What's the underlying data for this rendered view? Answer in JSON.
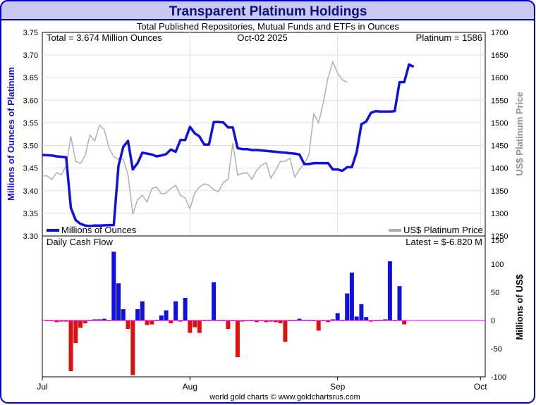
{
  "header": {
    "title": "Transparent Platinum Holdings",
    "subtitle": "Total Published Repositories, Mutual Funds and ETFs in Ounces"
  },
  "info": {
    "total": "Total = 3.674 Million Ounces",
    "date": "Oct-02  2025",
    "price": "Platinum = 1586"
  },
  "footer": {
    "credit": "world gold charts © www.goldchartsrus.com"
  },
  "colors": {
    "holdings": "#1010e0",
    "price": "#b0b0b0",
    "inflow": "#1010e0",
    "outflow": "#e01010",
    "zero_line": "#e000e0",
    "frame": "#0000c0",
    "title_bg": "#c8c8f0"
  },
  "chart_data": [
    {
      "type": "line",
      "title": "Transparent Platinum Holdings",
      "ylabel": "Millions of Ounces of Platinum",
      "y2label": "US$ Platinum Price",
      "ylim": [
        3.3,
        3.75
      ],
      "y2lim": [
        1250,
        1700
      ],
      "yticks": [
        "3.30",
        "3.35",
        "3.40",
        "3.45",
        "3.50",
        "3.55",
        "3.60",
        "3.65",
        "3.70",
        "3.75"
      ],
      "y2ticks": [
        "1250",
        "1300",
        "1350",
        "1400",
        "1450",
        "1500",
        "1550",
        "1600",
        "1650",
        "1700"
      ],
      "x_months": [
        {
          "label": "Jul",
          "day": 0
        },
        {
          "label": "Aug",
          "day": 31
        },
        {
          "label": "Sep",
          "day": 62
        },
        {
          "label": "Oct",
          "day": 92
        }
      ],
      "xlim": [
        0,
        93
      ],
      "legend": [
        "Millions of Ounces",
        "US$ Platinum Price"
      ],
      "series": [
        {
          "name": "Millions of Ounces",
          "axis": "left",
          "points": [
            [
              0,
              3.479
            ],
            [
              2,
              3.478
            ],
            [
              3,
              3.476
            ],
            [
              4,
              3.475
            ],
            [
              5,
              3.474
            ],
            [
              6,
              3.362
            ],
            [
              7,
              3.335
            ],
            [
              8,
              3.327
            ],
            [
              9,
              3.323
            ],
            [
              10,
              3.322
            ],
            [
              11,
              3.323
            ],
            [
              12,
              3.323
            ],
            [
              14,
              3.324
            ],
            [
              15,
              3.324
            ],
            [
              16,
              3.455
            ],
            [
              17,
              3.497
            ],
            [
              18,
              3.51
            ],
            [
              19,
              3.447
            ],
            [
              20,
              3.461
            ],
            [
              21,
              3.484
            ],
            [
              23,
              3.48
            ],
            [
              24,
              3.476
            ],
            [
              25,
              3.478
            ],
            [
              26,
              3.481
            ],
            [
              27,
              3.491
            ],
            [
              28,
              3.486
            ],
            [
              29,
              3.512
            ],
            [
              30,
              3.512
            ],
            [
              31,
              3.541
            ],
            [
              32,
              3.527
            ],
            [
              33,
              3.52
            ],
            [
              34,
              3.502
            ],
            [
              35,
              3.502
            ],
            [
              36,
              3.552
            ],
            [
              37,
              3.552
            ],
            [
              38,
              3.551
            ],
            [
              39,
              3.54
            ],
            [
              40,
              3.54
            ],
            [
              41,
              3.494
            ],
            [
              42,
              3.492
            ],
            [
              43,
              3.492
            ],
            [
              44,
              3.49
            ],
            [
              45,
              3.49
            ],
            [
              46,
              3.489
            ],
            [
              47,
              3.488
            ],
            [
              48,
              3.487
            ],
            [
              49,
              3.486
            ],
            [
              50,
              3.485
            ],
            [
              51,
              3.484
            ],
            [
              52,
              3.483
            ],
            [
              53,
              3.482
            ],
            [
              54,
              3.48
            ],
            [
              55,
              3.459
            ],
            [
              56,
              3.459
            ],
            [
              57,
              3.461
            ],
            [
              58,
              3.461
            ],
            [
              59,
              3.461
            ],
            [
              60,
              3.461
            ],
            [
              61,
              3.447
            ],
            [
              62,
              3.447
            ],
            [
              63,
              3.444
            ],
            [
              64,
              3.452
            ],
            [
              65,
              3.452
            ],
            [
              66,
              3.485
            ],
            [
              67,
              3.547
            ],
            [
              68,
              3.553
            ],
            [
              69,
              3.572
            ],
            [
              70,
              3.576
            ],
            [
              71,
              3.575
            ],
            [
              73,
              3.575
            ],
            [
              74,
              3.576
            ],
            [
              75,
              3.64
            ],
            [
              76,
              3.64
            ],
            [
              77,
              3.679
            ],
            [
              78,
              3.674
            ]
          ]
        },
        {
          "name": "US$ Platinum Price",
          "axis": "right",
          "points": [
            [
              0,
              1383
            ],
            [
              1,
              1383
            ],
            [
              2,
              1375
            ],
            [
              3,
              1390
            ],
            [
              4,
              1385
            ],
            [
              5,
              1405
            ],
            [
              6,
              1470
            ],
            [
              7,
              1415
            ],
            [
              8,
              1410
            ],
            [
              9,
              1428
            ],
            [
              10,
              1473
            ],
            [
              11,
              1460
            ],
            [
              12,
              1495
            ],
            [
              13,
              1485
            ],
            [
              14,
              1445
            ],
            [
              15,
              1425
            ],
            [
              16,
              1420
            ],
            [
              17,
              1420
            ],
            [
              18,
              1385
            ],
            [
              19,
              1298
            ],
            [
              20,
              1330
            ],
            [
              21,
              1340
            ],
            [
              22,
              1325
            ],
            [
              23,
              1355
            ],
            [
              24,
              1358
            ],
            [
              25,
              1343
            ],
            [
              26,
              1345
            ],
            [
              27,
              1355
            ],
            [
              28,
              1362
            ],
            [
              29,
              1340
            ],
            [
              30,
              1334
            ],
            [
              31,
              1310
            ],
            [
              32,
              1345
            ],
            [
              33,
              1358
            ],
            [
              34,
              1365
            ],
            [
              35,
              1362
            ],
            [
              36,
              1352
            ],
            [
              37,
              1348
            ],
            [
              38,
              1368
            ],
            [
              39,
              1375
            ],
            [
              40,
              1455
            ],
            [
              41,
              1385
            ],
            [
              42,
              1388
            ],
            [
              43,
              1390
            ],
            [
              44,
              1375
            ],
            [
              45,
              1395
            ],
            [
              46,
              1406
            ],
            [
              47,
              1412
            ],
            [
              48,
              1378
            ],
            [
              49,
              1395
            ],
            [
              50,
              1415
            ],
            [
              51,
              1415
            ],
            [
              52,
              1422
            ],
            [
              53,
              1380
            ],
            [
              54,
              1397
            ],
            [
              55,
              1410
            ],
            [
              56,
              1430
            ],
            [
              57,
              1520
            ],
            [
              58,
              1500
            ],
            [
              59,
              1545
            ],
            [
              60,
              1600
            ],
            [
              61,
              1635
            ],
            [
              62,
              1610
            ],
            [
              63,
              1595
            ],
            [
              64,
              1590
            ]
          ]
        }
      ]
    },
    {
      "type": "bar",
      "title": "Daily Cash Flow",
      "annotation": "Latest = $-6.820 M",
      "ylabel": "Millions of US$",
      "ylim": [
        -100,
        150
      ],
      "yticks": [
        "-100",
        "-50",
        "0",
        "50",
        "100",
        "150"
      ],
      "xlim": [
        0,
        93
      ],
      "bars": [
        [
          1,
          -1
        ],
        [
          2,
          -1
        ],
        [
          3,
          -3
        ],
        [
          4,
          -2
        ],
        [
          5,
          -2
        ],
        [
          6,
          -90
        ],
        [
          7,
          -40
        ],
        [
          8,
          -13
        ],
        [
          9,
          -5
        ],
        [
          10,
          1
        ],
        [
          11,
          2
        ],
        [
          12,
          2
        ],
        [
          13,
          3
        ],
        [
          14,
          -1
        ],
        [
          15,
          122
        ],
        [
          16,
          66
        ],
        [
          17,
          20
        ],
        [
          18,
          -15
        ],
        [
          19,
          -97
        ],
        [
          20,
          20
        ],
        [
          21,
          34
        ],
        [
          22,
          -8
        ],
        [
          23,
          -7
        ],
        [
          24,
          1
        ],
        [
          25,
          9
        ],
        [
          26,
          18
        ],
        [
          27,
          -5
        ],
        [
          28,
          34
        ],
        [
          29,
          -2
        ],
        [
          30,
          40
        ],
        [
          31,
          -22
        ],
        [
          32,
          -12
        ],
        [
          33,
          -22
        ],
        [
          34,
          -1
        ],
        [
          35,
          1
        ],
        [
          36,
          68
        ],
        [
          37,
          -1
        ],
        [
          38,
          1
        ],
        [
          39,
          -15
        ],
        [
          40,
          -1
        ],
        [
          41,
          -65
        ],
        [
          42,
          -2
        ],
        [
          43,
          -1
        ],
        [
          44,
          1
        ],
        [
          45,
          -3
        ],
        [
          46,
          -1
        ],
        [
          47,
          -3
        ],
        [
          48,
          -2
        ],
        [
          49,
          -3
        ],
        [
          50,
          -5
        ],
        [
          51,
          -38
        ],
        [
          52,
          -1
        ],
        [
          53,
          1
        ],
        [
          54,
          3
        ],
        [
          55,
          1
        ],
        [
          56,
          1
        ],
        [
          57,
          -1
        ],
        [
          58,
          -18
        ],
        [
          59,
          -1
        ],
        [
          60,
          -3
        ],
        [
          61,
          2
        ],
        [
          62,
          13
        ],
        [
          63,
          1
        ],
        [
          64,
          48
        ],
        [
          65,
          85
        ],
        [
          66,
          7
        ],
        [
          67,
          29
        ],
        [
          68,
          6
        ],
        [
          69,
          -2
        ],
        [
          70,
          -1
        ],
        [
          71,
          1
        ],
        [
          72,
          2
        ],
        [
          73,
          105
        ],
        [
          74,
          -1
        ],
        [
          75,
          61
        ],
        [
          76,
          -7
        ]
      ]
    }
  ]
}
